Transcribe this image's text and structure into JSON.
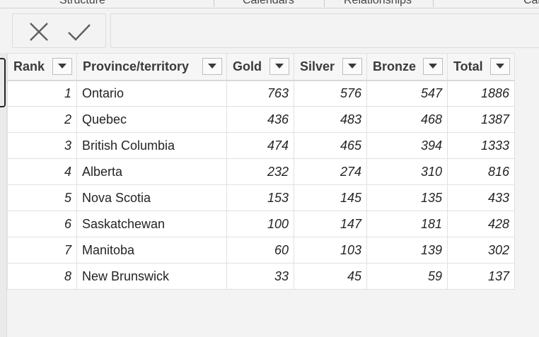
{
  "ribbon": {
    "tabs": [
      "Structure",
      "Calendars",
      "Relationships",
      "Cal"
    ]
  },
  "formula_bar": {
    "cancel_icon": "close-icon",
    "commit_icon": "check-icon",
    "formula": ""
  },
  "table": {
    "columns": [
      "Rank",
      "Province/territory",
      "Gold",
      "Silver",
      "Bronze",
      "Total"
    ],
    "rows": [
      [
        "1",
        "Ontario",
        "763",
        "576",
        "547",
        "1886"
      ],
      [
        "2",
        "Quebec",
        "436",
        "483",
        "468",
        "1387"
      ],
      [
        "3",
        "British Columbia",
        "474",
        "465",
        "394",
        "1333"
      ],
      [
        "4",
        "Alberta",
        "232",
        "274",
        "310",
        "816"
      ],
      [
        "5",
        "Nova Scotia",
        "153",
        "145",
        "135",
        "433"
      ],
      [
        "6",
        "Saskatchewan",
        "100",
        "147",
        "181",
        "428"
      ],
      [
        "7",
        "Manitoba",
        "60",
        "103",
        "139",
        "302"
      ],
      [
        "8",
        "New Brunswick",
        "33",
        "45",
        "59",
        "137"
      ]
    ]
  },
  "colors": {
    "background": "#f3f3f3",
    "grid": "#e1e1e1",
    "text": "#252423"
  }
}
